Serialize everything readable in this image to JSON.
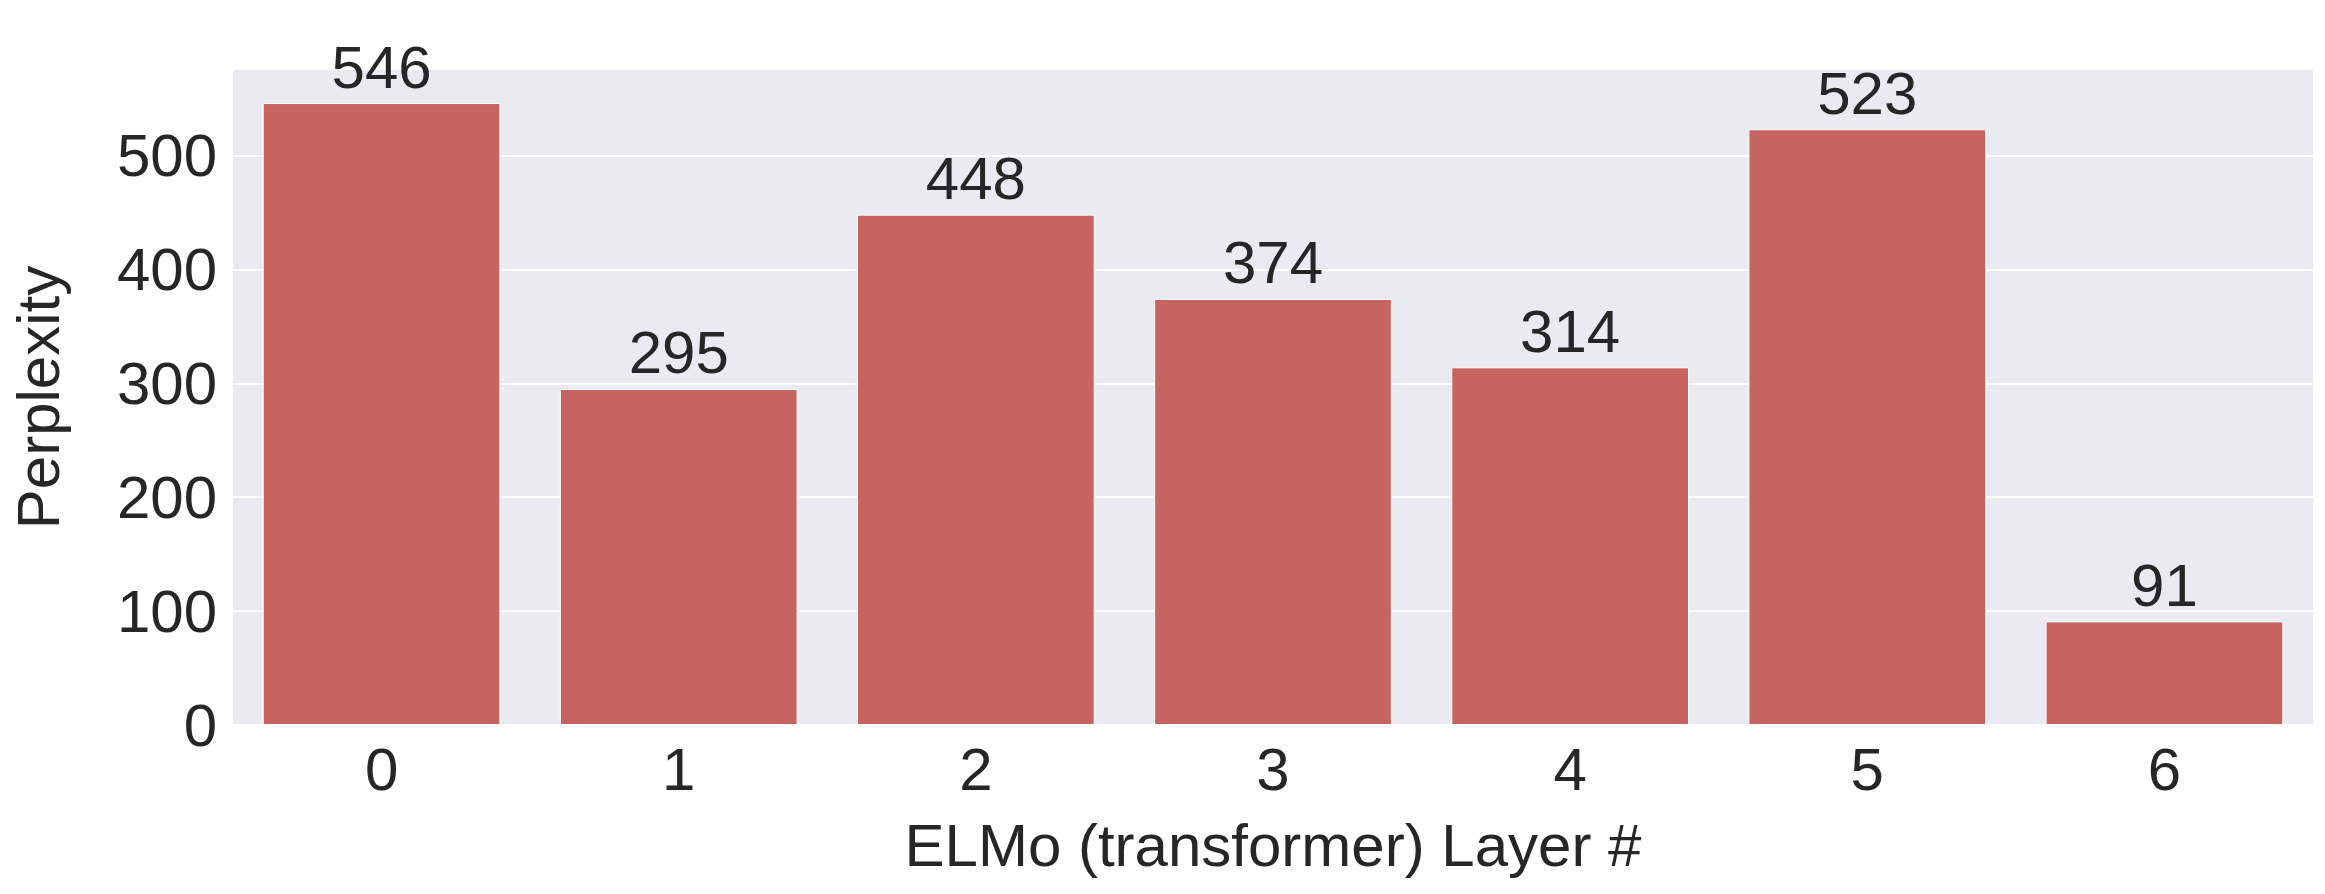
{
  "chart_data": {
    "type": "bar",
    "xlabel": "ELMo (transformer) Layer #",
    "ylabel": "Perplexity",
    "categories": [
      "0",
      "1",
      "2",
      "3",
      "4",
      "5",
      "6"
    ],
    "values": [
      546,
      295,
      448,
      374,
      314,
      523,
      91
    ],
    "color": "#c8645f",
    "ylim": [
      0,
      575
    ],
    "yticks": [
      0,
      100,
      200,
      300,
      400,
      500
    ],
    "grid": "y",
    "data_labels": true
  }
}
